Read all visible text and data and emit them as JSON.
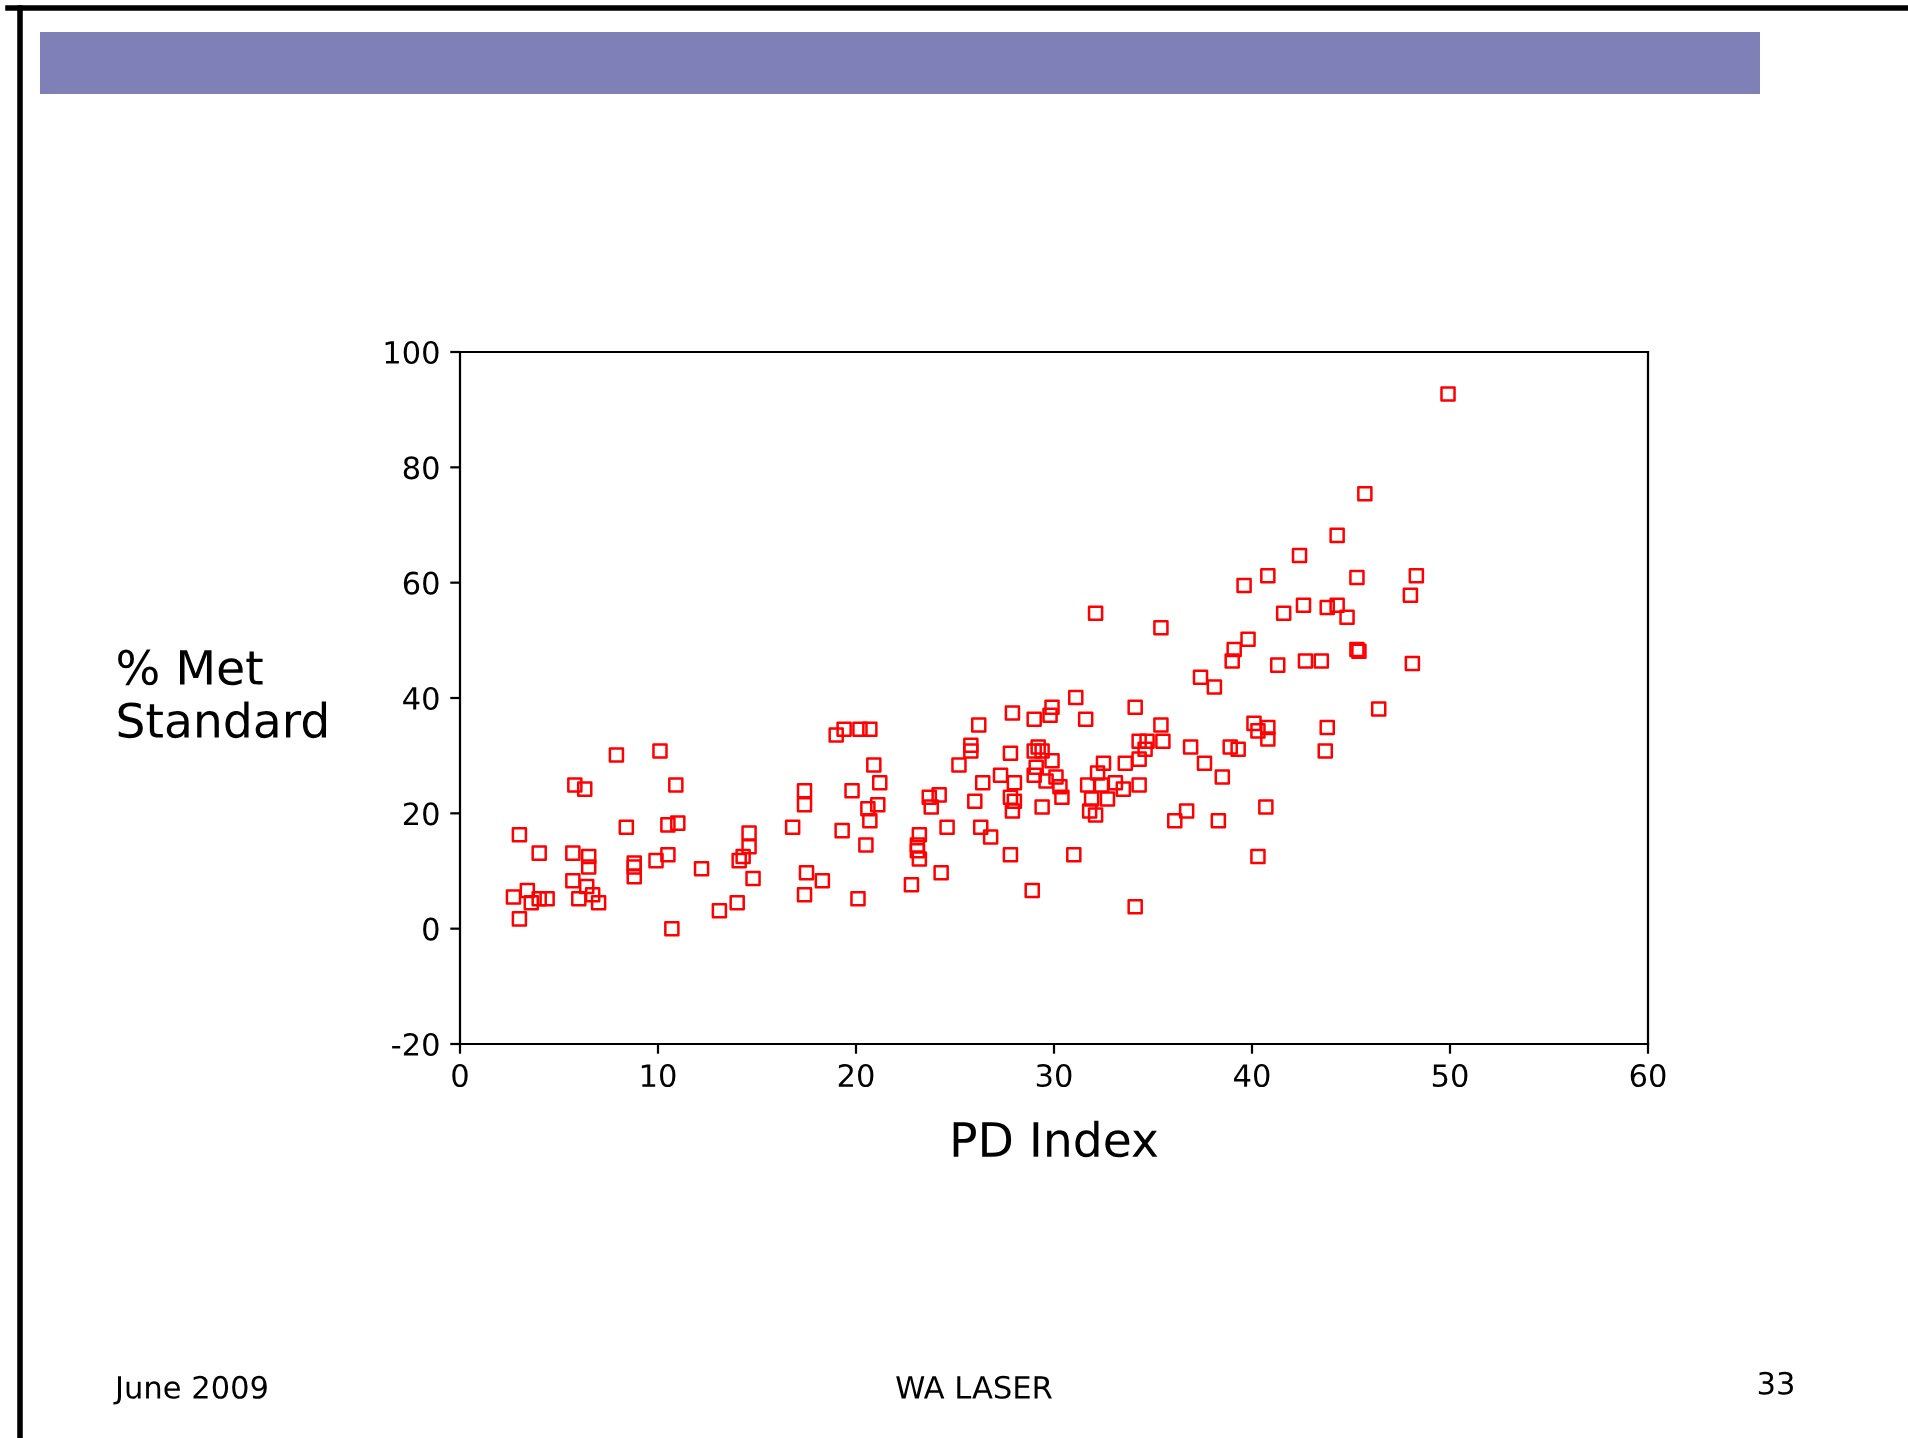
{
  "chart_data": {
    "type": "scatter",
    "xlabel": "PD Index",
    "ylabel": "% Met\nStandard",
    "xlim": [
      0,
      60
    ],
    "xticks": [
      0,
      10,
      20,
      30,
      40,
      50,
      60
    ],
    "ylim": [
      -20,
      100
    ],
    "yticks": [
      -20,
      0,
      20,
      40,
      60,
      80,
      100
    ],
    "grid": false,
    "marker": "square",
    "annotations": [
      "June 2009",
      "WA LASER",
      "33"
    ],
    "series": [
      {
        "color": "#ff0000",
        "x": [
          7.9,
          10.1,
          5.8,
          6.3,
          10.9,
          3.0,
          4.0,
          5.7,
          6.5,
          6.5,
          8.4,
          10.5,
          11.0,
          10.5,
          8.8,
          8.8,
          8.8,
          9.9,
          12.2,
          14.6,
          14.6,
          14.3,
          14.1,
          14.8,
          5.7,
          2.7,
          3.4,
          3.6,
          4.0,
          4.4,
          6.0,
          6.4,
          6.7,
          7.0,
          3.0,
          10.7,
          13.1,
          14.0,
          31.1,
          29.9,
          27.9,
          29.0,
          29.8,
          26.2,
          19.4,
          19.0,
          20.2,
          20.7,
          25.8,
          25.8,
          29.2,
          29.0,
          29.4,
          27.8,
          29.9,
          25.2,
          20.9,
          29.1,
          29.0,
          27.3,
          28.0,
          26.4,
          29.6,
          30.1,
          21.2,
          30.3,
          30.4,
          29.4,
          27.8,
          28.0,
          27.9,
          17.4,
          17.4,
          19.8,
          23.7,
          24.2,
          23.8,
          26.0,
          20.6,
          21.1,
          20.7,
          16.8,
          19.3,
          20.5,
          23.2,
          23.1,
          23.1,
          23.2,
          24.6,
          26.3,
          26.8,
          27.8,
          31.0,
          17.5,
          18.3,
          17.4,
          20.1,
          24.3,
          22.8,
          28.9,
          44.3,
          42.4,
          40.8,
          45.3,
          39.6,
          32.1,
          35.4,
          42.6,
          41.6,
          43.8,
          44.3,
          44.8,
          39.8,
          39.1,
          39.0,
          41.3,
          42.7,
          43.5,
          45.3,
          37.4,
          38.1,
          31.6,
          34.1,
          35.4,
          40.1,
          40.3,
          40.8,
          40.8,
          43.8,
          43.7,
          34.3,
          34.7,
          34.6,
          35.5,
          34.3,
          36.9,
          38.9,
          39.3,
          33.6,
          32.5,
          37.6,
          32.2,
          33.1,
          33.5,
          34.3,
          31.7,
          32.4,
          31.9,
          32.7,
          31.8,
          32.1,
          38.5,
          36.7,
          36.1,
          38.3,
          40.7,
          40.3,
          34.1,
          49.9,
          45.7,
          48.3,
          48.0,
          45.4,
          48.1,
          46.4
        ],
        "values": [
          30.1,
          30.8,
          24.9,
          24.2,
          24.9,
          16.3,
          13.1,
          13.1,
          12.5,
          10.7,
          17.6,
          18.0,
          18.3,
          12.8,
          11.4,
          10.7,
          9.0,
          11.8,
          10.4,
          16.6,
          14.2,
          12.5,
          11.8,
          8.7,
          8.3,
          5.5,
          6.6,
          4.5,
          5.2,
          5.2,
          5.2,
          7.3,
          5.9,
          4.5,
          1.7,
          0,
          3.1,
          4.5,
          40.1,
          38.4,
          37.4,
          36.3,
          37.0,
          35.3,
          34.6,
          33.6,
          34.6,
          34.6,
          31.8,
          30.8,
          31.5,
          30.8,
          30.8,
          30.4,
          29.1,
          28.4,
          28.4,
          28.0,
          26.6,
          26.6,
          25.3,
          25.3,
          25.6,
          26.3,
          25.3,
          24.6,
          22.8,
          21.1,
          22.8,
          22.1,
          20.4,
          23.9,
          21.5,
          23.9,
          22.8,
          23.2,
          21.1,
          22.1,
          20.8,
          21.5,
          18.7,
          17.6,
          17.0,
          14.5,
          16.3,
          14.5,
          13.5,
          12.1,
          17.6,
          17.6,
          15.9,
          12.8,
          12.8,
          9.7,
          8.3,
          5.9,
          5.2,
          9.7,
          7.6,
          6.6,
          68.2,
          64.7,
          61.2,
          60.9,
          59.5,
          54.7,
          52.2,
          56.1,
          54.7,
          55.7,
          56.1,
          54.0,
          50.2,
          48.4,
          46.4,
          45.7,
          46.4,
          46.4,
          48.4,
          43.6,
          41.9,
          36.3,
          38.4,
          35.3,
          35.6,
          34.3,
          34.9,
          32.9,
          34.9,
          30.8,
          32.5,
          32.5,
          31.1,
          32.5,
          29.4,
          31.5,
          31.5,
          31.1,
          28.7,
          28.7,
          28.7,
          27.0,
          25.3,
          24.2,
          24.9,
          24.9,
          24.9,
          22.5,
          22.5,
          20.4,
          19.7,
          26.3,
          20.4,
          18.7,
          18.7,
          21.1,
          12.5,
          3.8,
          92.7,
          75.4,
          61.2,
          57.8,
          48.1,
          46.0,
          38.1
        ]
      }
    ]
  }
}
